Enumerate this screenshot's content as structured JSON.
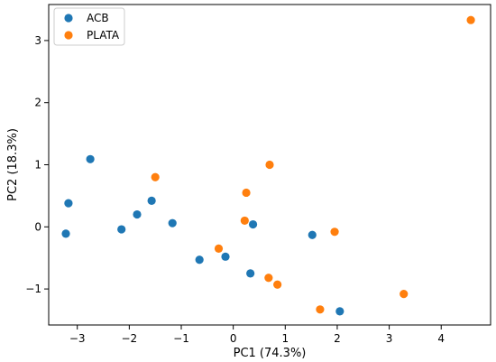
{
  "chart_data": {
    "type": "scatter",
    "xlabel": "PC1 (74.3%)",
    "ylabel": "PC2 (18.3%)",
    "xlim": [
      -3.55,
      4.95
    ],
    "ylim": [
      -1.58,
      3.58
    ],
    "x_ticks": [
      -3,
      -2,
      -1,
      0,
      1,
      2,
      3,
      4
    ],
    "y_ticks": [
      -1,
      0,
      1,
      2,
      3
    ],
    "x_tick_labels": [
      "−3",
      "−2",
      "−1",
      "0",
      "1",
      "2",
      "3",
      "4"
    ],
    "y_tick_labels": [
      "−1",
      "0",
      "1",
      "2",
      "3"
    ],
    "grid": false,
    "legend": {
      "position": "top-left",
      "entries": [
        "ACB",
        "PLATA"
      ]
    },
    "series": [
      {
        "name": "ACB",
        "color": "#1f77b4",
        "points": [
          [
            -2.75,
            1.09
          ],
          [
            -3.17,
            0.38
          ],
          [
            -3.22,
            -0.11
          ],
          [
            -2.15,
            -0.04
          ],
          [
            -1.85,
            0.2
          ],
          [
            -1.57,
            0.42
          ],
          [
            -1.17,
            0.06
          ],
          [
            -0.65,
            -0.53
          ],
          [
            -0.15,
            -0.48
          ],
          [
            0.33,
            -0.75
          ],
          [
            0.38,
            0.04
          ],
          [
            1.52,
            -0.13
          ],
          [
            2.05,
            -1.36
          ]
        ]
      },
      {
        "name": "PLATA",
        "color": "#ff7f0e",
        "points": [
          [
            -1.5,
            0.8
          ],
          [
            0.7,
            1.0
          ],
          [
            0.25,
            0.55
          ],
          [
            0.22,
            0.1
          ],
          [
            -0.28,
            -0.35
          ],
          [
            0.68,
            -0.82
          ],
          [
            0.85,
            -0.93
          ],
          [
            1.67,
            -1.33
          ],
          [
            1.95,
            -0.08
          ],
          [
            3.28,
            -1.08
          ],
          [
            4.57,
            3.33
          ]
        ]
      }
    ]
  }
}
